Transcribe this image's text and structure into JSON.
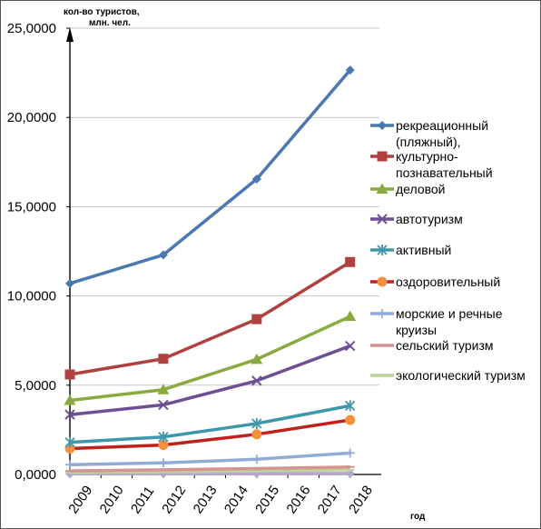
{
  "chart_data": {
    "type": "line",
    "title": "",
    "ylabel_line1": "кол-во туристов,",
    "ylabel_line2": "млн. чел.",
    "xlabel": "год",
    "ylim": [
      0,
      25000
    ],
    "ytick_labels": [
      "0,0000",
      "5,0000",
      "10,0000",
      "15,0000",
      "20,0000",
      "25,0000"
    ],
    "yticks": [
      0,
      5000,
      10000,
      15000,
      20000,
      25000
    ],
    "x_ticks": [
      "2009",
      "2010",
      "2011",
      "2012",
      "2013",
      "2014",
      "2015",
      "2016",
      "2017",
      "2018"
    ],
    "grid": "horizontal",
    "legend_position": "right",
    "series": [
      {
        "name": "рекреационный (пляжный),",
        "x": [
          "2009",
          "2012",
          "2015",
          "2018"
        ],
        "values": [
          10700,
          12300,
          16550,
          22650
        ],
        "color": "#4a78b0",
        "marker": "diamond"
      },
      {
        "name": "культурно-познавательный",
        "x": [
          "2009",
          "2012",
          "2015",
          "2018"
        ],
        "values": [
          5600,
          6480,
          8700,
          11900
        ],
        "color": "#b0413e",
        "marker": "square"
      },
      {
        "name": "деловой",
        "x": [
          "2009",
          "2012",
          "2015",
          "2018"
        ],
        "values": [
          4150,
          4750,
          6450,
          8850
        ],
        "color": "#88aa3e",
        "marker": "triangle"
      },
      {
        "name": "автотуризм",
        "x": [
          "2009",
          "2012",
          "2015",
          "2018"
        ],
        "values": [
          3350,
          3900,
          5250,
          7200
        ],
        "color": "#6f4f94",
        "marker": "x"
      },
      {
        "name": "активный",
        "x": [
          "2009",
          "2012",
          "2015",
          "2018"
        ],
        "values": [
          1800,
          2100,
          2850,
          3850
        ],
        "color": "#3f97ac",
        "marker": "star"
      },
      {
        "name": "оздоровительный",
        "x": [
          "2009",
          "2012",
          "2015",
          "2018"
        ],
        "values": [
          1450,
          1650,
          2250,
          3050
        ],
        "color": "#c0201e",
        "marker": "circle",
        "marker_color": "#f5913e"
      },
      {
        "name": "морские и речные круизы",
        "x": [
          "2009",
          "2012",
          "2015",
          "2018"
        ],
        "values": [
          550,
          650,
          850,
          1200
        ],
        "color": "#8fabd6",
        "marker": "plus"
      },
      {
        "name": "сельский туризм",
        "x": [
          "2009",
          "2012",
          "2015",
          "2018"
        ],
        "values": [
          200,
          260,
          330,
          420
        ],
        "color": "#d49592",
        "marker": "dash"
      },
      {
        "name": "экологический туризм",
        "x": [
          "2009",
          "2012",
          "2015",
          "2018"
        ],
        "values": [
          120,
          150,
          200,
          260
        ],
        "color": "#bcd39a",
        "marker": "dash"
      },
      {
        "name": "",
        "x": [
          "2009",
          "2012",
          "2015",
          "2018"
        ],
        "values": [
          30,
          40,
          50,
          60
        ],
        "color": "#b5a6cf",
        "marker": "diamond"
      }
    ]
  }
}
